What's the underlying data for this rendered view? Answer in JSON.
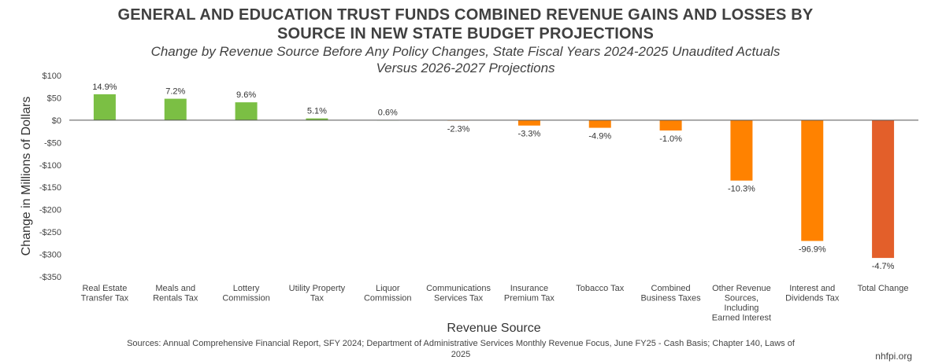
{
  "header": {
    "title_line1": "GENERAL AND EDUCATION TRUST FUNDS COMBINED REVENUE GAINS AND LOSSES BY",
    "title_line2": "SOURCE IN NEW STATE BUDGET PROJECTIONS",
    "subtitle_line1": "Change by Revenue Source Before Any Policy Changes, State Fiscal Years 2024-2025 Unaudited Actuals",
    "subtitle_line2": "Versus 2026-2027 Projections"
  },
  "footer": {
    "sources": "Sources: Annual Comprehensive Financial Report, SFY 2024; Department of Administrative Services Monthly Revenue Focus, June FY25 - Cash Basis; Chapter 140, Laws of 2025",
    "site": "nhfpi.org"
  },
  "chart_data": {
    "type": "bar",
    "xlabel": "Revenue Source",
    "ylabel": "Change in Millions of Dollars",
    "ylim": [
      -350,
      100
    ],
    "yticks": [
      100,
      50,
      0,
      -50,
      -100,
      -150,
      -200,
      -250,
      -300,
      -350
    ],
    "ytick_labels": [
      "$100",
      "$50",
      "$0",
      "-$50",
      "-$100",
      "-$150",
      "-$200",
      "-$250",
      "-$300",
      "-$350"
    ],
    "grid": false,
    "categories": [
      [
        "Real Estate",
        "Transfer Tax"
      ],
      [
        "Meals and",
        "Rentals Tax"
      ],
      [
        "Lottery",
        "Commission"
      ],
      [
        "Utility Property",
        "Tax"
      ],
      [
        "Liquor",
        "Commission"
      ],
      [
        "Communications",
        "Services Tax"
      ],
      [
        "Insurance",
        "Premium Tax"
      ],
      [
        "Tobacco Tax"
      ],
      [
        "Combined",
        "Business Taxes"
      ],
      [
        "Other Revenue",
        "Sources,",
        "Including",
        "Earned Interest"
      ],
      [
        "Interest and",
        "Dividends Tax"
      ],
      [
        "Total Change"
      ]
    ],
    "values": [
      58,
      48,
      40,
      4,
      0.5,
      -1,
      -12,
      -17,
      -23,
      -135,
      -270,
      -308
    ],
    "data_labels": [
      "14.9%",
      "7.2%",
      "9.6%",
      "5.1%",
      "0.6%",
      "-2.3%",
      "-3.3%",
      "-4.9%",
      "-1.0%",
      "-10.3%",
      "-96.9%",
      "-4.7%"
    ],
    "colors": {
      "gain": "#7bbf44",
      "loss": "#ff8200",
      "total": "#e35f2a",
      "axis": "#555555"
    }
  }
}
